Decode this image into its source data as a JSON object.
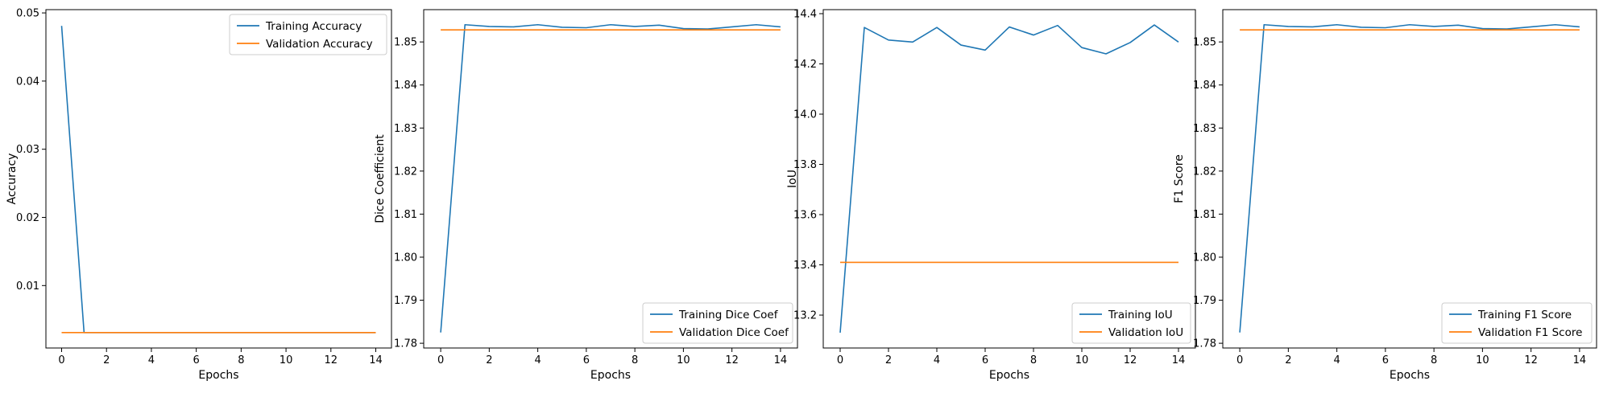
{
  "colors": {
    "training": "#1f77b4",
    "validation": "#ff7f0e",
    "axis": "#000000",
    "legend_border": "#cccccc"
  },
  "chart_data": [
    {
      "type": "line",
      "xlabel": "Epochs",
      "ylabel": "Accuracy",
      "xlim": [
        -0.7,
        14.7
      ],
      "ylim": [
        0.00084,
        0.05048
      ],
      "xticks": [
        "0",
        "2",
        "4",
        "6",
        "8",
        "10",
        "12",
        "14"
      ],
      "yticks": [
        "0.01",
        "0.02",
        "0.03",
        "0.04",
        "0.05"
      ],
      "legend": "upper right",
      "grid": false,
      "x": [
        0,
        1,
        2,
        3,
        4,
        5,
        6,
        7,
        8,
        9,
        10,
        11,
        12,
        13,
        14
      ],
      "series": [
        {
          "name": "Training Accuracy",
          "color": "training",
          "values": [
            0.0481,
            0.0031,
            0.0031,
            0.0031,
            0.0031,
            0.0031,
            0.0031,
            0.0031,
            0.0031,
            0.0031,
            0.0031,
            0.0031,
            0.0031,
            0.0031,
            0.0031
          ]
        },
        {
          "name": "Validation Accuracy",
          "color": "validation",
          "values": [
            0.0031,
            0.0031,
            0.0031,
            0.0031,
            0.0031,
            0.0031,
            0.0031,
            0.0031,
            0.0031,
            0.0031,
            0.0031,
            0.0031,
            0.0031,
            0.0031,
            0.0031
          ]
        }
      ]
    },
    {
      "type": "line",
      "xlabel": "Epochs",
      "ylabel": "Dice Coefficient",
      "xlim": [
        -0.7,
        14.7
      ],
      "ylim": [
        1.7789,
        1.8575
      ],
      "xticks": [
        "0",
        "2",
        "4",
        "6",
        "8",
        "10",
        "12",
        "14"
      ],
      "yticks": [
        "1.78",
        "1.79",
        "1.80",
        "1.81",
        "1.82",
        "1.83",
        "1.84",
        "1.85"
      ],
      "legend": "lower right",
      "grid": false,
      "x": [
        0,
        1,
        2,
        3,
        4,
        5,
        6,
        7,
        8,
        9,
        10,
        11,
        12,
        13,
        14
      ],
      "series": [
        {
          "name": "Training Dice Coef",
          "color": "training",
          "values": [
            1.7825,
            1.854,
            1.8536,
            1.8535,
            1.854,
            1.8534,
            1.8533,
            1.854,
            1.8536,
            1.8539,
            1.8531,
            1.853,
            1.8535,
            1.854,
            1.8535
          ]
        },
        {
          "name": "Validation Dice Coef",
          "color": "validation",
          "values": [
            1.8528,
            1.8528,
            1.8528,
            1.8528,
            1.8528,
            1.8528,
            1.8528,
            1.8528,
            1.8528,
            1.8528,
            1.8528,
            1.8528,
            1.8528,
            1.8528,
            1.8528
          ]
        }
      ]
    },
    {
      "type": "line",
      "xlabel": "Epochs",
      "ylabel": "IoU",
      "xlim": [
        -0.7,
        14.7
      ],
      "ylim": [
        13.069,
        14.416
      ],
      "xticks": [
        "0",
        "2",
        "4",
        "6",
        "8",
        "10",
        "12",
        "14"
      ],
      "yticks": [
        "13.2",
        "13.4",
        "13.6",
        "13.8",
        "14.0",
        "14.2",
        "14.4"
      ],
      "legend": "lower right",
      "grid": false,
      "x": [
        0,
        1,
        2,
        3,
        4,
        5,
        6,
        7,
        8,
        9,
        10,
        11,
        12,
        13,
        14
      ],
      "series": [
        {
          "name": "Training IoU",
          "color": "training",
          "values": [
            13.13,
            14.345,
            14.295,
            14.287,
            14.345,
            14.275,
            14.255,
            14.347,
            14.315,
            14.353,
            14.265,
            14.24,
            14.285,
            14.355,
            14.287
          ]
        },
        {
          "name": "Validation IoU",
          "color": "validation",
          "values": [
            13.41,
            13.41,
            13.41,
            13.41,
            13.41,
            13.41,
            13.41,
            13.41,
            13.41,
            13.41,
            13.41,
            13.41,
            13.41,
            13.41,
            13.41
          ]
        }
      ]
    },
    {
      "type": "line",
      "xlabel": "Epochs",
      "ylabel": "F1 Score",
      "xlim": [
        -0.7,
        14.7
      ],
      "ylim": [
        1.7789,
        1.8575
      ],
      "xticks": [
        "0",
        "2",
        "4",
        "6",
        "8",
        "10",
        "12",
        "14"
      ],
      "yticks": [
        "1.78",
        "1.79",
        "1.80",
        "1.81",
        "1.82",
        "1.83",
        "1.84",
        "1.85"
      ],
      "legend": "lower right",
      "grid": false,
      "x": [
        0,
        1,
        2,
        3,
        4,
        5,
        6,
        7,
        8,
        9,
        10,
        11,
        12,
        13,
        14
      ],
      "series": [
        {
          "name": "Training F1 Score",
          "color": "training",
          "values": [
            1.7825,
            1.854,
            1.8536,
            1.8535,
            1.854,
            1.8534,
            1.8533,
            1.854,
            1.8536,
            1.8539,
            1.8531,
            1.853,
            1.8535,
            1.854,
            1.8535
          ]
        },
        {
          "name": "Validation F1 Score",
          "color": "validation",
          "values": [
            1.8528,
            1.8528,
            1.8528,
            1.8528,
            1.8528,
            1.8528,
            1.8528,
            1.8528,
            1.8528,
            1.8528,
            1.8528,
            1.8528,
            1.8528,
            1.8528,
            1.8528
          ]
        }
      ]
    }
  ]
}
